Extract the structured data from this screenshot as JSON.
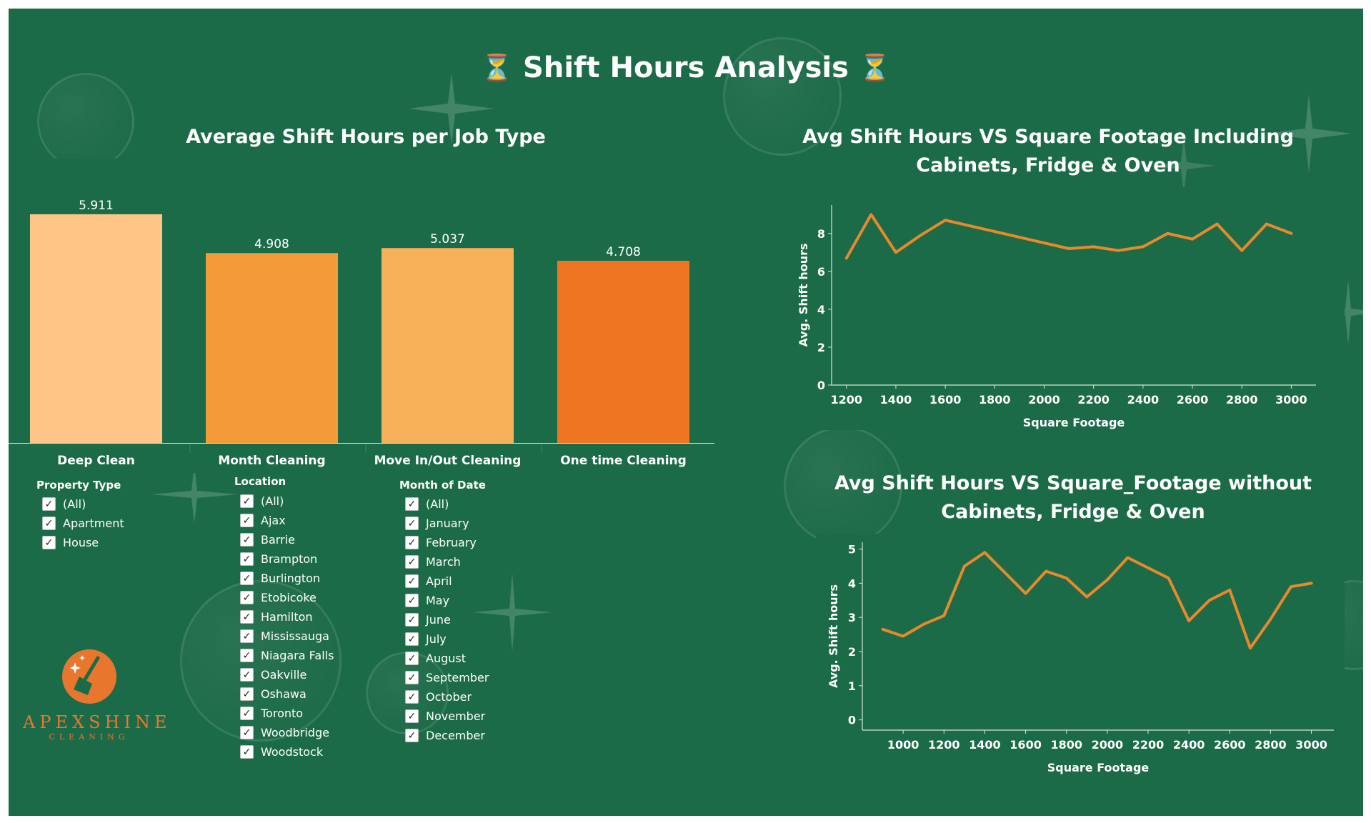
{
  "dashboard": {
    "title": "Shift Hours Analysis",
    "title_icon": "hourglass-icon",
    "colors": {
      "background": "#1c6b48",
      "line": "#e8892c",
      "text": "#ffffff",
      "logo": "#e8762c"
    }
  },
  "bar_panel": {
    "title": "Average Shift Hours per Job Type"
  },
  "line_panel_1": {
    "title_line1": "Avg Shift Hours VS Square Footage Including",
    "title_line2": "Cabinets, Fridge & Oven"
  },
  "line_panel_2": {
    "title_line1": "Avg Shift Hours VS Square_Footage without",
    "title_line2": "Cabinets, Fridge & Oven"
  },
  "chart_data": [
    {
      "type": "bar",
      "title": "Average Shift Hours per Job Type",
      "categories": [
        "Deep Clean",
        "Month Cleaning",
        "Move In/Out Cleaning",
        "One time Cleaning"
      ],
      "values": [
        5.911,
        4.908,
        5.037,
        4.708
      ],
      "labels": [
        "5.911",
        "4.908",
        "5.037",
        "4.708"
      ],
      "colors": [
        "#ffc586",
        "#f29b38",
        "#f7b158",
        "#ee7522"
      ],
      "ylim": [
        0,
        6.5
      ],
      "grid": false
    },
    {
      "type": "line",
      "title": "Avg Shift Hours VS Square Footage Including Cabinets, Fridge & Oven",
      "xlabel": "Square Footage",
      "ylabel": "Avg. Shift hours",
      "x": [
        1200,
        1300,
        1400,
        1500,
        1600,
        1700,
        1800,
        1900,
        2000,
        2100,
        2200,
        2300,
        2400,
        2500,
        2600,
        2700,
        2800,
        2900,
        3000
      ],
      "y": [
        6.7,
        9.0,
        7.0,
        7.9,
        8.7,
        8.4,
        8.1,
        7.8,
        7.5,
        7.2,
        7.3,
        7.1,
        7.3,
        8.0,
        7.7,
        8.5,
        7.1,
        8.5,
        8.0
      ],
      "xticks": [
        "1200",
        "1400",
        "1600",
        "1800",
        "2000",
        "2200",
        "2400",
        "2600",
        "2800",
        "3000"
      ],
      "yticks": [
        "0",
        "2",
        "4",
        "6",
        "8"
      ],
      "xlim": [
        1140,
        3100
      ],
      "ylim": [
        0,
        9.5
      ],
      "grid": false
    },
    {
      "type": "line",
      "title": "Avg Shift Hours VS Square_Footage without Cabinets, Fridge & Oven",
      "xlabel": "Square Footage",
      "ylabel": "Avg. Shift hours",
      "x": [
        900,
        1000,
        1100,
        1200,
        1300,
        1400,
        1500,
        1600,
        1700,
        1800,
        1900,
        2000,
        2100,
        2200,
        2300,
        2400,
        2500,
        2600,
        2700,
        2800,
        2900,
        3000
      ],
      "y": [
        2.65,
        2.45,
        2.8,
        3.05,
        4.5,
        4.9,
        4.3,
        3.7,
        4.35,
        4.15,
        3.6,
        4.1,
        4.75,
        4.45,
        4.15,
        2.9,
        3.5,
        3.8,
        2.1,
        2.95,
        3.9,
        4.0
      ],
      "xticks": [
        "1000",
        "1200",
        "1400",
        "1600",
        "1800",
        "2000",
        "2200",
        "2400",
        "2600",
        "2800",
        "3000"
      ],
      "yticks": [
        "0",
        "1",
        "2",
        "3",
        "4",
        "5"
      ],
      "xlim": [
        800,
        3110
      ],
      "ylim": [
        -0.3,
        5.2
      ],
      "grid": false
    }
  ],
  "filters": {
    "property_type": {
      "title": "Property Type",
      "items": [
        "(All)",
        "Apartment",
        "House"
      ]
    },
    "location": {
      "title": "Location",
      "items": [
        "(All)",
        "Ajax",
        "Barrie",
        "Brampton",
        "Burlington",
        "Etobicoke",
        "Hamilton",
        "Mississauga",
        "Niagara Falls",
        "Oakville",
        "Oshawa",
        "Toronto",
        "Woodbridge",
        "Woodstock"
      ]
    },
    "month": {
      "title": "Month of Date",
      "items": [
        "(All)",
        "January",
        "February",
        "March",
        "April",
        "May",
        "June",
        "July",
        "August",
        "September",
        "October",
        "November",
        "December"
      ]
    },
    "check_mark": "✓"
  },
  "logo": {
    "name": "APEXSHINE",
    "sub": "CLEANING",
    "icon": "broom-sparkle-icon"
  }
}
